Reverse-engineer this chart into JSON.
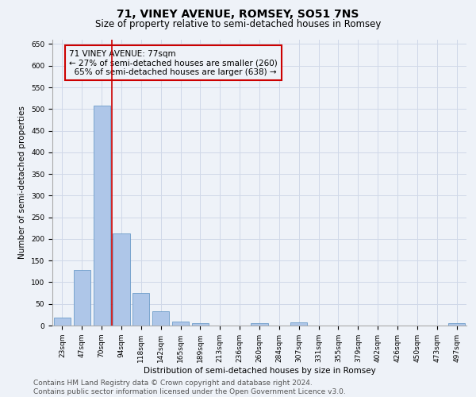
{
  "title": "71, VINEY AVENUE, ROMSEY, SO51 7NS",
  "subtitle": "Size of property relative to semi-detached houses in Romsey",
  "xlabel": "Distribution of semi-detached houses by size in Romsey",
  "ylabel": "Number of semi-detached properties",
  "categories": [
    "23sqm",
    "47sqm",
    "70sqm",
    "94sqm",
    "118sqm",
    "142sqm",
    "165sqm",
    "189sqm",
    "213sqm",
    "236sqm",
    "260sqm",
    "284sqm",
    "307sqm",
    "331sqm",
    "355sqm",
    "379sqm",
    "402sqm",
    "426sqm",
    "450sqm",
    "473sqm",
    "497sqm"
  ],
  "values": [
    18,
    128,
    507,
    213,
    76,
    33,
    10,
    6,
    0,
    0,
    6,
    0,
    8,
    0,
    0,
    0,
    0,
    0,
    0,
    0,
    6
  ],
  "bar_color": "#aec6e8",
  "bar_edge_color": "#5a8fc2",
  "grid_color": "#d0d8e8",
  "background_color": "#eef2f8",
  "property_line_x": 2.5,
  "property_label": "71 VINEY AVENUE: 77sqm",
  "smaller_pct": "27%",
  "smaller_count": 260,
  "larger_pct": "65%",
  "larger_count": 638,
  "annotation_box_color": "#cc0000",
  "vline_color": "#cc0000",
  "ylim": [
    0,
    660
  ],
  "yticks": [
    0,
    50,
    100,
    150,
    200,
    250,
    300,
    350,
    400,
    450,
    500,
    550,
    600,
    650
  ],
  "footer_line1": "Contains HM Land Registry data © Crown copyright and database right 2024.",
  "footer_line2": "Contains public sector information licensed under the Open Government Licence v3.0.",
  "title_fontsize": 10,
  "subtitle_fontsize": 8.5,
  "axis_label_fontsize": 7.5,
  "tick_fontsize": 6.5,
  "annotation_fontsize": 7.5,
  "footer_fontsize": 6.5
}
